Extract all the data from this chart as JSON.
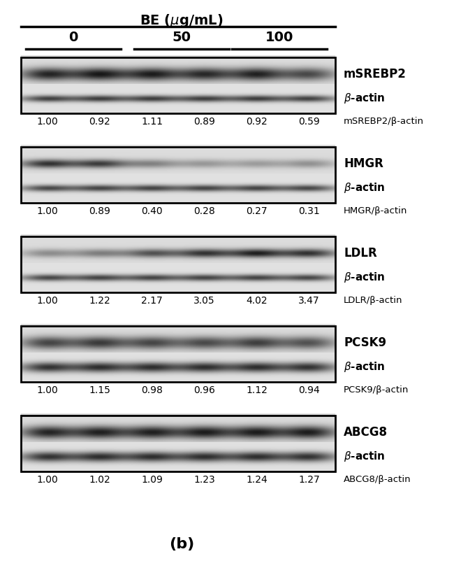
{
  "title": "BE (μg/mL)",
  "subtitle": "(b)",
  "groups": [
    "0",
    "50",
    "100"
  ],
  "panels": [
    {
      "protein": "mSREBP2",
      "ratio_label": "mSREBP2/β-actin",
      "values": [
        "1.00",
        "0.92",
        "1.11",
        "0.89",
        "0.92",
        "0.59"
      ],
      "band1_intensity": [
        0.88,
        0.92,
        0.9,
        0.84,
        0.88,
        0.7
      ],
      "band2_intensity": [
        0.75,
        0.75,
        0.75,
        0.75,
        0.75,
        0.75
      ],
      "band1_thick": true,
      "band2_thick": false
    },
    {
      "protein": "HMGR",
      "ratio_label": "HMGR/β-actin",
      "values": [
        "1.00",
        "0.89",
        "0.40",
        "0.28",
        "0.27",
        "0.31"
      ],
      "band1_intensity": [
        0.82,
        0.76,
        0.42,
        0.32,
        0.3,
        0.36
      ],
      "band2_intensity": [
        0.72,
        0.72,
        0.72,
        0.72,
        0.72,
        0.72
      ],
      "band1_thick": false,
      "band2_thick": false
    },
    {
      "protein": "LDLR",
      "ratio_label": "LDLR/β-actin",
      "values": [
        "1.00",
        "1.22",
        "2.17",
        "3.05",
        "4.02",
        "3.47"
      ],
      "band1_intensity": [
        0.38,
        0.44,
        0.65,
        0.8,
        0.9,
        0.82
      ],
      "band2_intensity": [
        0.72,
        0.72,
        0.72,
        0.72,
        0.72,
        0.72
      ],
      "band1_thick": false,
      "band2_thick": false
    },
    {
      "protein": "PCSK9",
      "ratio_label": "PCSK9/β-actin",
      "values": [
        "1.00",
        "1.15",
        "0.98",
        "0.96",
        "1.12",
        "0.94"
      ],
      "band1_intensity": [
        0.72,
        0.76,
        0.7,
        0.68,
        0.74,
        0.66
      ],
      "band2_intensity": [
        0.82,
        0.82,
        0.82,
        0.82,
        0.82,
        0.82
      ],
      "band1_thick": true,
      "band2_thick": true
    },
    {
      "protein": "ABCG8",
      "ratio_label": "ABCG8/β-actin",
      "values": [
        "1.00",
        "1.02",
        "1.09",
        "1.23",
        "1.24",
        "1.27"
      ],
      "band1_intensity": [
        0.88,
        0.88,
        0.88,
        0.9,
        0.9,
        0.92
      ],
      "band2_intensity": [
        0.82,
        0.82,
        0.82,
        0.82,
        0.82,
        0.82
      ],
      "band1_thick": true,
      "band2_thick": true
    }
  ],
  "background_color": "#ffffff",
  "num_lanes": 6,
  "panel_bg": "#d8d8d8"
}
